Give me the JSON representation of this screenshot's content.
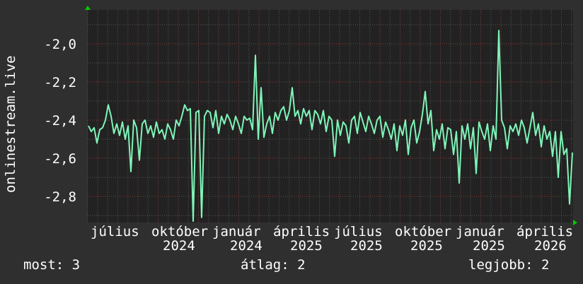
{
  "chart_data": {
    "type": "line",
    "title": "",
    "ylabel": "onlinestream.live",
    "xlabel": "",
    "ylim": [
      -2.937,
      -1.822
    ],
    "y_ticks": [
      "-2,0",
      "-2,2",
      "-2,4",
      "-2,6",
      "-2,8"
    ],
    "y_tick_values": [
      -2.0,
      -2.2,
      -2.4,
      -2.6,
      -2.8
    ],
    "x_month_labels": [
      "július",
      "október",
      "január",
      "április",
      "július",
      "október",
      "január",
      "április"
    ],
    "x_year_labels": [
      "2024",
      "2024",
      "2025",
      "2025",
      "2025",
      "2025",
      "2026"
    ],
    "grid": true,
    "series": [
      {
        "color": "#7ff5b8",
        "values": [
          -2.43,
          -2.46,
          -2.44,
          -2.52,
          -2.45,
          -2.44,
          -2.4,
          -2.32,
          -2.38,
          -2.47,
          -2.42,
          -2.48,
          -2.41,
          -2.5,
          -2.43,
          -2.67,
          -2.4,
          -2.44,
          -2.61,
          -2.42,
          -2.4,
          -2.47,
          -2.43,
          -2.49,
          -2.41,
          -2.47,
          -2.45,
          -2.5,
          -2.42,
          -2.45,
          -2.5,
          -2.4,
          -2.43,
          -2.38,
          -2.32,
          -2.35,
          -2.34,
          -2.93,
          -2.36,
          -2.35,
          -2.91,
          -2.38,
          -2.35,
          -2.36,
          -2.44,
          -2.35,
          -2.47,
          -2.38,
          -2.42,
          -2.37,
          -2.4,
          -2.45,
          -2.38,
          -2.42,
          -2.47,
          -2.38,
          -2.4,
          -2.39,
          -2.45,
          -2.06,
          -2.5,
          -2.23,
          -2.49,
          -2.42,
          -2.38,
          -2.47,
          -2.36,
          -2.4,
          -2.35,
          -2.33,
          -2.4,
          -2.35,
          -2.23,
          -2.38,
          -2.35,
          -2.42,
          -2.34,
          -2.38,
          -2.35,
          -2.45,
          -2.35,
          -2.37,
          -2.42,
          -2.35,
          -2.46,
          -2.38,
          -2.4,
          -2.59,
          -2.4,
          -2.48,
          -2.41,
          -2.43,
          -2.52,
          -2.4,
          -2.38,
          -2.47,
          -2.36,
          -2.41,
          -2.46,
          -2.38,
          -2.42,
          -2.47,
          -2.4,
          -2.38,
          -2.49,
          -2.41,
          -2.45,
          -2.5,
          -2.42,
          -2.56,
          -2.43,
          -2.48,
          -2.4,
          -2.58,
          -2.44,
          -2.4,
          -2.52,
          -2.46,
          -2.37,
          -2.25,
          -2.42,
          -2.35,
          -2.56,
          -2.45,
          -2.5,
          -2.42,
          -2.55,
          -2.44,
          -2.45,
          -2.58,
          -2.46,
          -2.73,
          -2.43,
          -2.5,
          -2.42,
          -2.55,
          -2.44,
          -2.68,
          -2.41,
          -2.46,
          -2.5,
          -2.42,
          -2.56,
          -2.43,
          -2.5,
          -1.93,
          -2.4,
          -2.44,
          -2.55,
          -2.43,
          -2.46,
          -2.42,
          -2.48,
          -2.4,
          -2.44,
          -2.52,
          -2.44,
          -2.36,
          -2.48,
          -2.42,
          -2.54,
          -2.43,
          -2.5,
          -2.46,
          -2.59,
          -2.46,
          -2.7,
          -2.46,
          -2.58,
          -2.55,
          -2.84,
          -2.57
        ]
      }
    ]
  },
  "legend": {
    "current": "most: 3",
    "average": "átlag: 2",
    "max": "legjobb: 2"
  },
  "colors": {
    "background": "#2f2f2f",
    "plot_background": "#222222",
    "major_grid": "#8a3a3a",
    "minor_grid": "#555555",
    "axis_arrow": "#00cc00"
  }
}
